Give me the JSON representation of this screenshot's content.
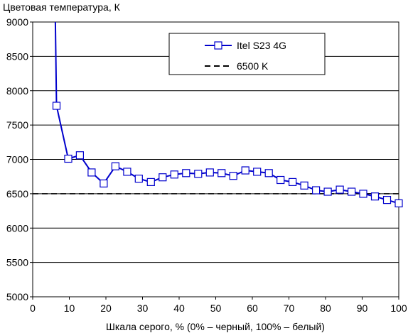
{
  "chart_data": {
    "type": "line",
    "ylabel": "Цветовая температура, К",
    "xlabel": "Шкала серого, % (0% – черный, 100% – белый)",
    "xlim": [
      0,
      100
    ],
    "ylim": [
      5000,
      9000
    ],
    "x_ticks": [
      0,
      10,
      20,
      30,
      40,
      50,
      60,
      70,
      80,
      90,
      100
    ],
    "y_ticks": [
      5000,
      5500,
      6000,
      6500,
      7000,
      7500,
      8000,
      8500,
      9000
    ],
    "grid": "horizontal",
    "legend_position": "top-right",
    "series": [
      {
        "name": "Itel S23 4G",
        "style": "line-square-markers",
        "color": "#0000cc",
        "marker_fill": "#ffffff",
        "start": {
          "x": 6.2,
          "y": 9000
        },
        "points": [
          {
            "x": 6.5,
            "y": 7780
          },
          {
            "x": 9.7,
            "y": 7010
          },
          {
            "x": 12.9,
            "y": 7060
          },
          {
            "x": 16.1,
            "y": 6810
          },
          {
            "x": 19.4,
            "y": 6650
          },
          {
            "x": 22.6,
            "y": 6900
          },
          {
            "x": 25.8,
            "y": 6820
          },
          {
            "x": 29.0,
            "y": 6720
          },
          {
            "x": 32.3,
            "y": 6670
          },
          {
            "x": 35.5,
            "y": 6740
          },
          {
            "x": 38.7,
            "y": 6780
          },
          {
            "x": 41.9,
            "y": 6800
          },
          {
            "x": 45.2,
            "y": 6790
          },
          {
            "x": 48.4,
            "y": 6810
          },
          {
            "x": 51.6,
            "y": 6800
          },
          {
            "x": 54.8,
            "y": 6760
          },
          {
            "x": 58.1,
            "y": 6840
          },
          {
            "x": 61.3,
            "y": 6820
          },
          {
            "x": 64.5,
            "y": 6800
          },
          {
            "x": 67.7,
            "y": 6700
          },
          {
            "x": 71.0,
            "y": 6670
          },
          {
            "x": 74.2,
            "y": 6620
          },
          {
            "x": 77.4,
            "y": 6550
          },
          {
            "x": 80.6,
            "y": 6530
          },
          {
            "x": 83.9,
            "y": 6560
          },
          {
            "x": 87.1,
            "y": 6530
          },
          {
            "x": 90.3,
            "y": 6500
          },
          {
            "x": 93.5,
            "y": 6460
          },
          {
            "x": 96.8,
            "y": 6410
          },
          {
            "x": 100,
            "y": 6360
          }
        ]
      },
      {
        "name": "6500 K",
        "style": "dashed-line",
        "color": "#000000",
        "points": [
          {
            "x": 0,
            "y": 6500
          },
          {
            "x": 100,
            "y": 6500
          }
        ]
      }
    ]
  }
}
